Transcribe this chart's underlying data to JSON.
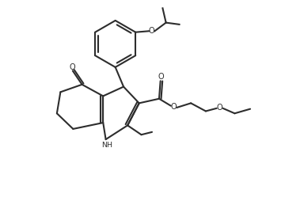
{
  "background_color": "#ffffff",
  "line_color": "#2d2d2d",
  "bond_width": 1.5,
  "figsize": [
    3.84,
    2.54
  ],
  "dpi": 100,
  "xlim": [
    -0.5,
    10.5
  ],
  "ylim": [
    1.5,
    10.5
  ]
}
